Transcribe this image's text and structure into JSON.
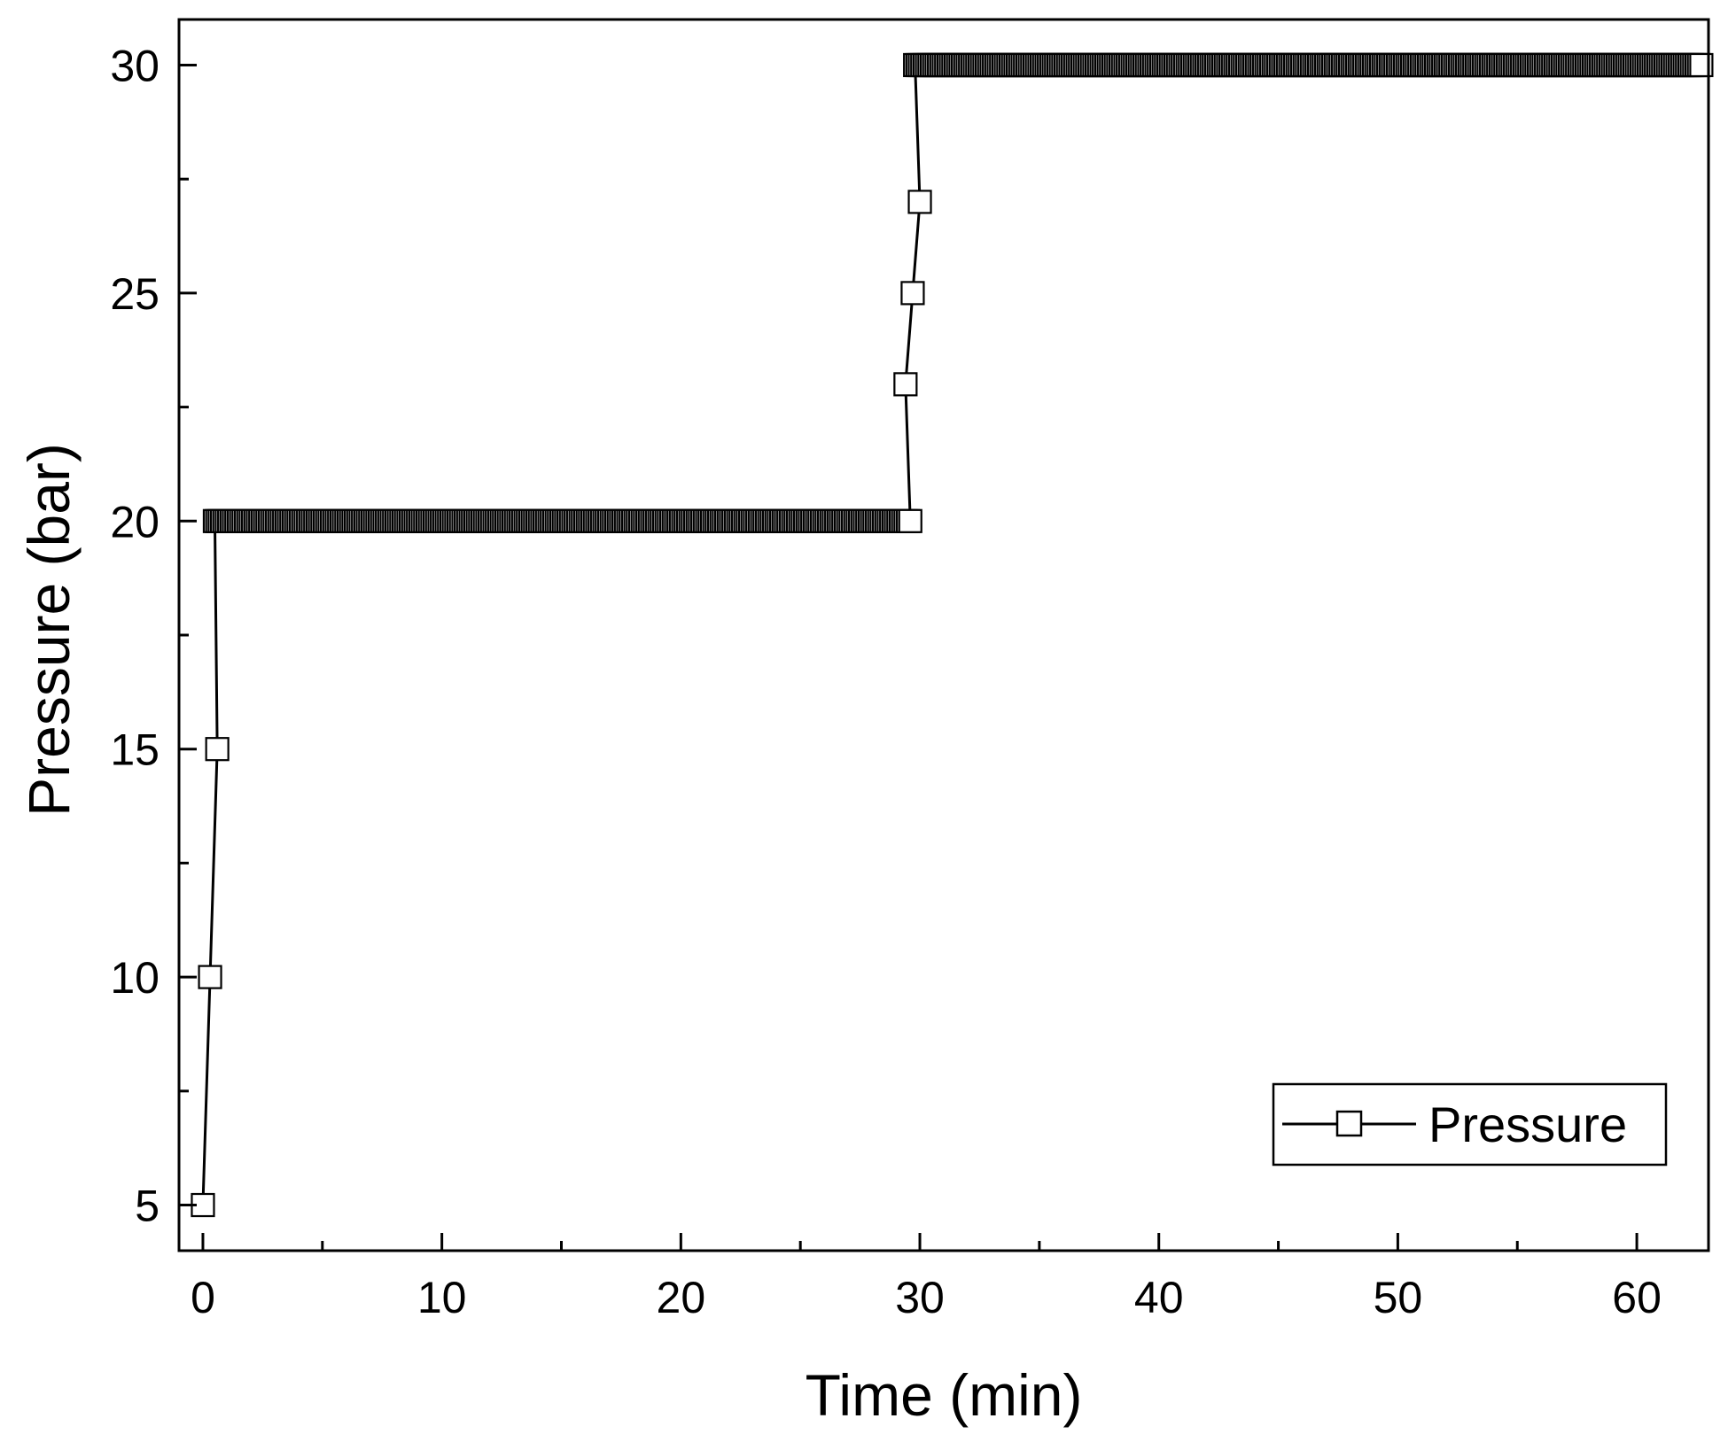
{
  "chart_data": {
    "type": "line",
    "title": "",
    "xlabel": "Time (min)",
    "ylabel": "Pressure (bar)",
    "xlim": [
      -1,
      63
    ],
    "ylim": [
      4,
      31
    ],
    "x_ticks": [
      0,
      10,
      20,
      30,
      40,
      50,
      60
    ],
    "x_tick_labels": [
      "0",
      "10",
      "20",
      "30",
      "40",
      "50",
      "60"
    ],
    "y_ticks": [
      5,
      10,
      15,
      20,
      25,
      30
    ],
    "y_tick_labels": [
      "5",
      "10",
      "15",
      "20",
      "25",
      "30"
    ],
    "x_minor_step": 5,
    "y_minor_step": 2.5,
    "grid": false,
    "legend": {
      "position": "bottom-right",
      "entries": [
        "Pressure"
      ]
    },
    "series": [
      {
        "name": "Pressure",
        "marker": "open-square",
        "color": "#000000",
        "ramp_up_1": {
          "x": [
            0,
            0.3,
            0.6
          ],
          "y": [
            5,
            10,
            15
          ]
        },
        "hold_1": {
          "x_start": 0.5,
          "x_end": 29.6,
          "step": 0.1,
          "y": 20
        },
        "ramp_up_2": {
          "x": [
            29.4,
            29.7,
            30.0
          ],
          "y": [
            23,
            25,
            27
          ]
        },
        "hold_2": {
          "x_start": 29.8,
          "x_end": 62.7,
          "step": 0.1,
          "y": 30
        }
      }
    ]
  }
}
